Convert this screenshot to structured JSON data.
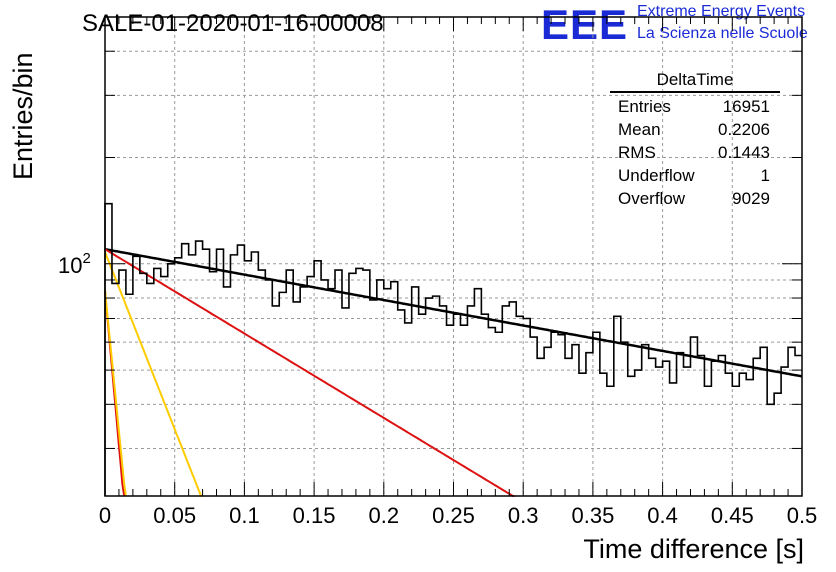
{
  "title": "SALE-01-2020-01-16-00008",
  "logo": {
    "mark": "EEE",
    "line1": "Extreme Energy Events",
    "line2": "La Scienza nelle Scuole"
  },
  "stats_box": {
    "name": "DeltaTime",
    "rows": [
      {
        "label": "Entries",
        "value": "16951"
      },
      {
        "label": "Mean",
        "value": "0.2206"
      },
      {
        "label": "RMS",
        "value": "0.1443"
      },
      {
        "label": "Underflow",
        "value": "1"
      },
      {
        "label": "Overflow",
        "value": "9029"
      }
    ]
  },
  "chart_data": {
    "type": "histogram",
    "title": "SALE-01-2020-01-16-00008",
    "xlabel": "Time difference [s]",
    "ylabel": "Entries/bin",
    "xlim": [
      0,
      0.5
    ],
    "ylim": [
      22,
      500
    ],
    "y_scale": "log",
    "x_ticks": [
      "0",
      "0.05",
      "0.1",
      "0.15",
      "0.2",
      "0.25",
      "0.3",
      "0.35",
      "0.4",
      "0.45",
      "0.5"
    ],
    "y_tick_label": "10^2",
    "grid": true,
    "bin_width": 0.005,
    "bin_counts": [
      148,
      88,
      96,
      82,
      105,
      94,
      88,
      97,
      92,
      100,
      104,
      114,
      106,
      116,
      110,
      95,
      110,
      86,
      106,
      113,
      102,
      108,
      96,
      90,
      76,
      83,
      96,
      78,
      86,
      92,
      102,
      90,
      85,
      96,
      75,
      94,
      97,
      96,
      79,
      90,
      85,
      89,
      74,
      68,
      86,
      72,
      80,
      81,
      76,
      67,
      72,
      67,
      76,
      85,
      72,
      66,
      64,
      76,
      78,
      71,
      70,
      62,
      54,
      58,
      64,
      63,
      54,
      59,
      49,
      56,
      64,
      49,
      45,
      71,
      60,
      48,
      50,
      59,
      54,
      51,
      53,
      46,
      56,
      51,
      62,
      55,
      45,
      53,
      55,
      49,
      45,
      49,
      47,
      54,
      58,
      40,
      43,
      51,
      58,
      55
    ],
    "fits": [
      {
        "name": "total",
        "color": "#000000",
        "y0": 110,
        "y1": 48
      },
      {
        "name": "slow",
        "color": "#dd1111",
        "y0": 110,
        "y1": 7.03
      },
      {
        "name": "mid",
        "color": "#ffcc00",
        "y0": 108,
        "y1": 0.00104
      },
      {
        "name": "fast_red",
        "color": "#dd1111",
        "y0": 84,
        "y1": 1e-20
      },
      {
        "name": "fast_yellow",
        "color": "#ffcc00",
        "y0": 84,
        "y1": 1e-18
      }
    ]
  }
}
